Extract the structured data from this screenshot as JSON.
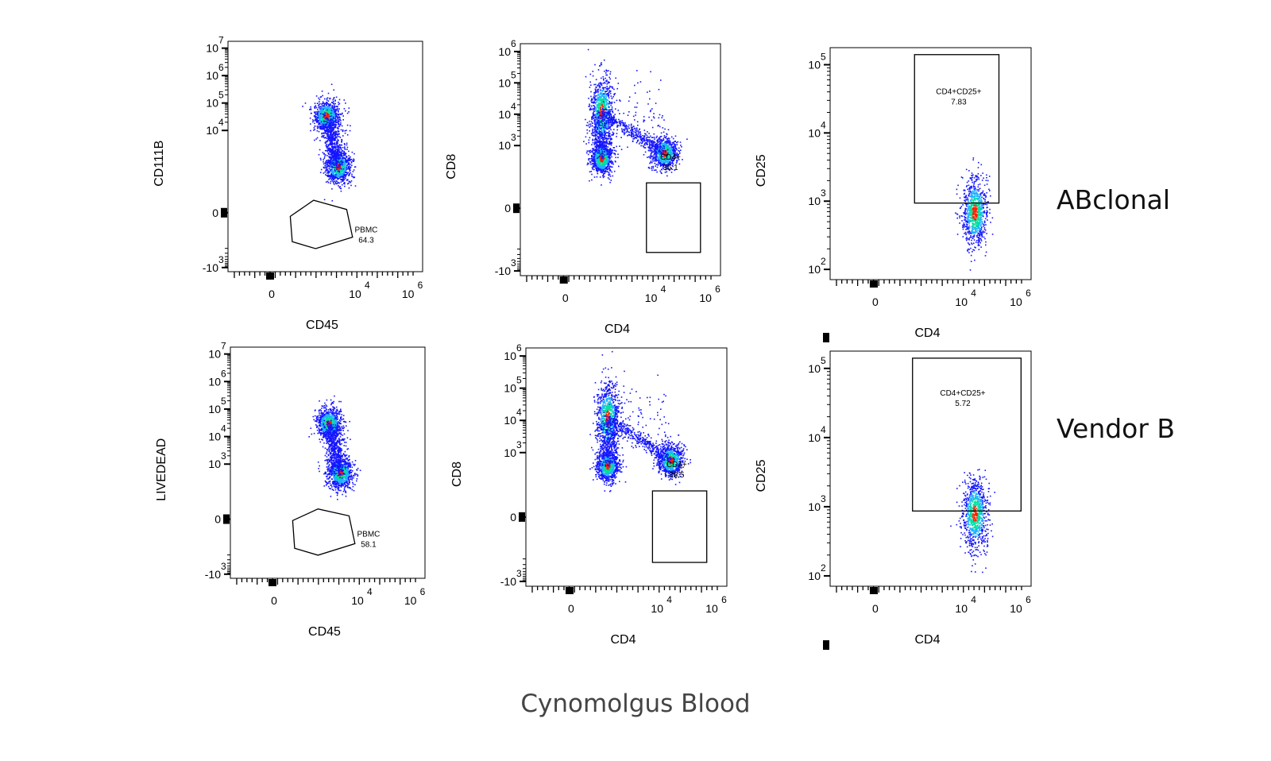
{
  "row_labels": [
    "ABclonal",
    "Vendor B"
  ],
  "footer_title": "Cynomolgus Blood",
  "colors": {
    "axis": "#000000",
    "gate": "#000000",
    "density_low": "#1515ff",
    "density_mid": "#00e0a0",
    "density_high": "#ff2000"
  },
  "chart_data": [
    {
      "type": "scatter",
      "row": 0,
      "col": 0,
      "scale": "biexponential",
      "xlabel": "CD45",
      "ylabel": "CD111B",
      "x_ticks": [
        "0",
        "10 4",
        "10 6"
      ],
      "y_ticks": [
        "-10 3",
        "0",
        "10 4",
        "10 5",
        "10 6",
        "10 7"
      ],
      "gate": {
        "shape": "polygon",
        "name": "PBMC",
        "value": "64.3"
      },
      "populations": [
        {
          "x": 2200,
          "y": 500,
          "density": "high"
        },
        {
          "x": 800,
          "y": 35000,
          "density": "mid"
        },
        {
          "x": 1500,
          "y": 4000,
          "density": "low"
        }
      ]
    },
    {
      "type": "scatter",
      "row": 0,
      "col": 1,
      "scale": "biexponential",
      "xlabel": "CD4",
      "ylabel": "CD8",
      "x_ticks": [
        "0",
        "10 4",
        "10 6"
      ],
      "y_ticks": [
        "-10 3",
        "0",
        "10 3",
        "10 4",
        "10 5",
        "10 6"
      ],
      "gate": {
        "shape": "rectangle",
        "name": "CD4+",
        "value": "36.1"
      },
      "populations": [
        {
          "x": 150,
          "y": 12000,
          "density": "mid"
        },
        {
          "x": 150,
          "y": 400,
          "density": "high"
        },
        {
          "x": 30000,
          "y": 600,
          "density": "high"
        }
      ]
    },
    {
      "type": "scatter",
      "row": 0,
      "col": 2,
      "scale": "biexponential",
      "xlabel": "CD4",
      "ylabel": "CD25",
      "x_ticks": [
        "0",
        "10 4",
        "10 6"
      ],
      "y_ticks": [
        "10 2",
        "10 3",
        "10 4",
        "10 5"
      ],
      "gate": {
        "shape": "rectangle",
        "name": "CD4+CD25+",
        "value": "7.83"
      },
      "populations": [
        {
          "x": 30000,
          "y": 700,
          "density": "high"
        }
      ]
    },
    {
      "type": "scatter",
      "row": 1,
      "col": 0,
      "scale": "biexponential",
      "xlabel": "CD45",
      "ylabel": "LIVEDEAD",
      "x_ticks": [
        "0",
        "10 4",
        "10 6"
      ],
      "y_ticks": [
        "-10 3",
        "0",
        "10 3",
        "10 4",
        "10 5",
        "10 6",
        "10 7"
      ],
      "gate": {
        "shape": "polygon",
        "name": "PBMC",
        "value": "58.1"
      },
      "populations": [
        {
          "x": 2200,
          "y": 500,
          "density": "high"
        },
        {
          "x": 800,
          "y": 30000,
          "density": "mid"
        },
        {
          "x": 1500,
          "y": 3000,
          "density": "low"
        }
      ]
    },
    {
      "type": "scatter",
      "row": 1,
      "col": 1,
      "scale": "biexponential",
      "xlabel": "CD4",
      "ylabel": "CD8",
      "x_ticks": [
        "0",
        "10 4",
        "10 6"
      ],
      "y_ticks": [
        "-10 3",
        "0",
        "10 3",
        "10 4",
        "10 5",
        "10 6"
      ],
      "gate": {
        "shape": "rectangle",
        "name": "CD4+",
        "value": "36.5"
      },
      "populations": [
        {
          "x": 150,
          "y": 12000,
          "density": "mid"
        },
        {
          "x": 150,
          "y": 400,
          "density": "high"
        },
        {
          "x": 30000,
          "y": 600,
          "density": "high"
        }
      ]
    },
    {
      "type": "scatter",
      "row": 1,
      "col": 2,
      "scale": "biexponential",
      "xlabel": "CD4",
      "ylabel": "CD25",
      "x_ticks": [
        "0",
        "10 4",
        "10 6"
      ],
      "y_ticks": [
        "10 2",
        "10 3",
        "10 4",
        "10 5"
      ],
      "gate": {
        "shape": "rectangle",
        "name": "CD4+CD25+",
        "value": "5.72"
      },
      "populations": [
        {
          "x": 30000,
          "y": 800,
          "density": "high"
        }
      ]
    }
  ]
}
